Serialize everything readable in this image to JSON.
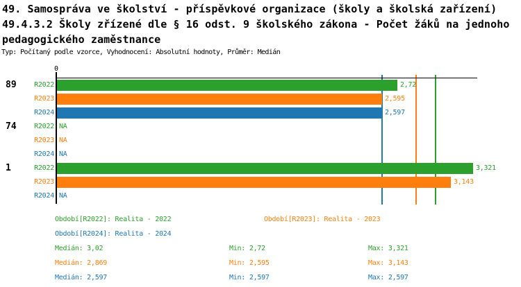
{
  "header": {
    "title_line1": "49. Samospráva ve školství - příspěvkové organizace (školy a školská zařízení)",
    "title_line2": "49.4.3.2 Školy zřízené dle § 16 odst. 9 školského zákona - Počet žáků na jednoho",
    "title_line3": "pedagogického zaměstnance",
    "subtitle": "Typ: Počítaný podle vzorce, Vyhodnocení: Absolutní hodnoty, Průměr: Medián"
  },
  "colors": {
    "R2022": "#2ca02c",
    "R2023": "#ff7f0e",
    "R2024": "#1f77b4",
    "axis": "#000000"
  },
  "chart_data": {
    "type": "bar",
    "orientation": "horizontal",
    "x_origin_label": "0",
    "xlim": [
      0,
      3.36
    ],
    "grid": false,
    "groups": [
      {
        "label": "89",
        "rows": [
          {
            "series": "R2022",
            "value": 2.72,
            "label": "2,72"
          },
          {
            "series": "R2023",
            "value": 2.595,
            "label": "2,595"
          },
          {
            "series": "R2024",
            "value": 2.597,
            "label": "2,597"
          }
        ]
      },
      {
        "label": "74",
        "rows": [
          {
            "series": "R2022",
            "value": null,
            "label": "NA"
          },
          {
            "series": "R2023",
            "value": null,
            "label": "NA"
          },
          {
            "series": "R2024",
            "value": null,
            "label": "NA"
          }
        ]
      },
      {
        "label": "1",
        "rows": [
          {
            "series": "R2022",
            "value": 3.321,
            "label": "3,321"
          },
          {
            "series": "R2023",
            "value": 3.143,
            "label": "3,143"
          },
          {
            "series": "R2024",
            "value": null,
            "label": "NA"
          }
        ]
      }
    ],
    "median_lines": [
      {
        "series": "R2022",
        "value": 3.02
      },
      {
        "series": "R2023",
        "value": 2.869
      },
      {
        "series": "R2024",
        "value": 2.597
      }
    ]
  },
  "legend": {
    "items": [
      {
        "series": "R2022",
        "label": "Období[R2022]: Realita - 2022"
      },
      {
        "series": "R2023",
        "label": "Období[R2023]: Realita - 2023"
      },
      {
        "series": "R2024",
        "label": "Období[R2024]: Realita - 2024"
      }
    ]
  },
  "stats": {
    "rows": [
      {
        "series": "R2022",
        "median": "Medián: 3,02",
        "min": "Min: 2,72",
        "max": "Max: 3,321"
      },
      {
        "series": "R2023",
        "median": "Medián: 2,869",
        "min": "Min: 2,595",
        "max": "Max: 3,143"
      },
      {
        "series": "R2024",
        "median": "Medián: 2,597",
        "min": "Min: 2,597",
        "max": "Max: 2,597"
      }
    ]
  }
}
